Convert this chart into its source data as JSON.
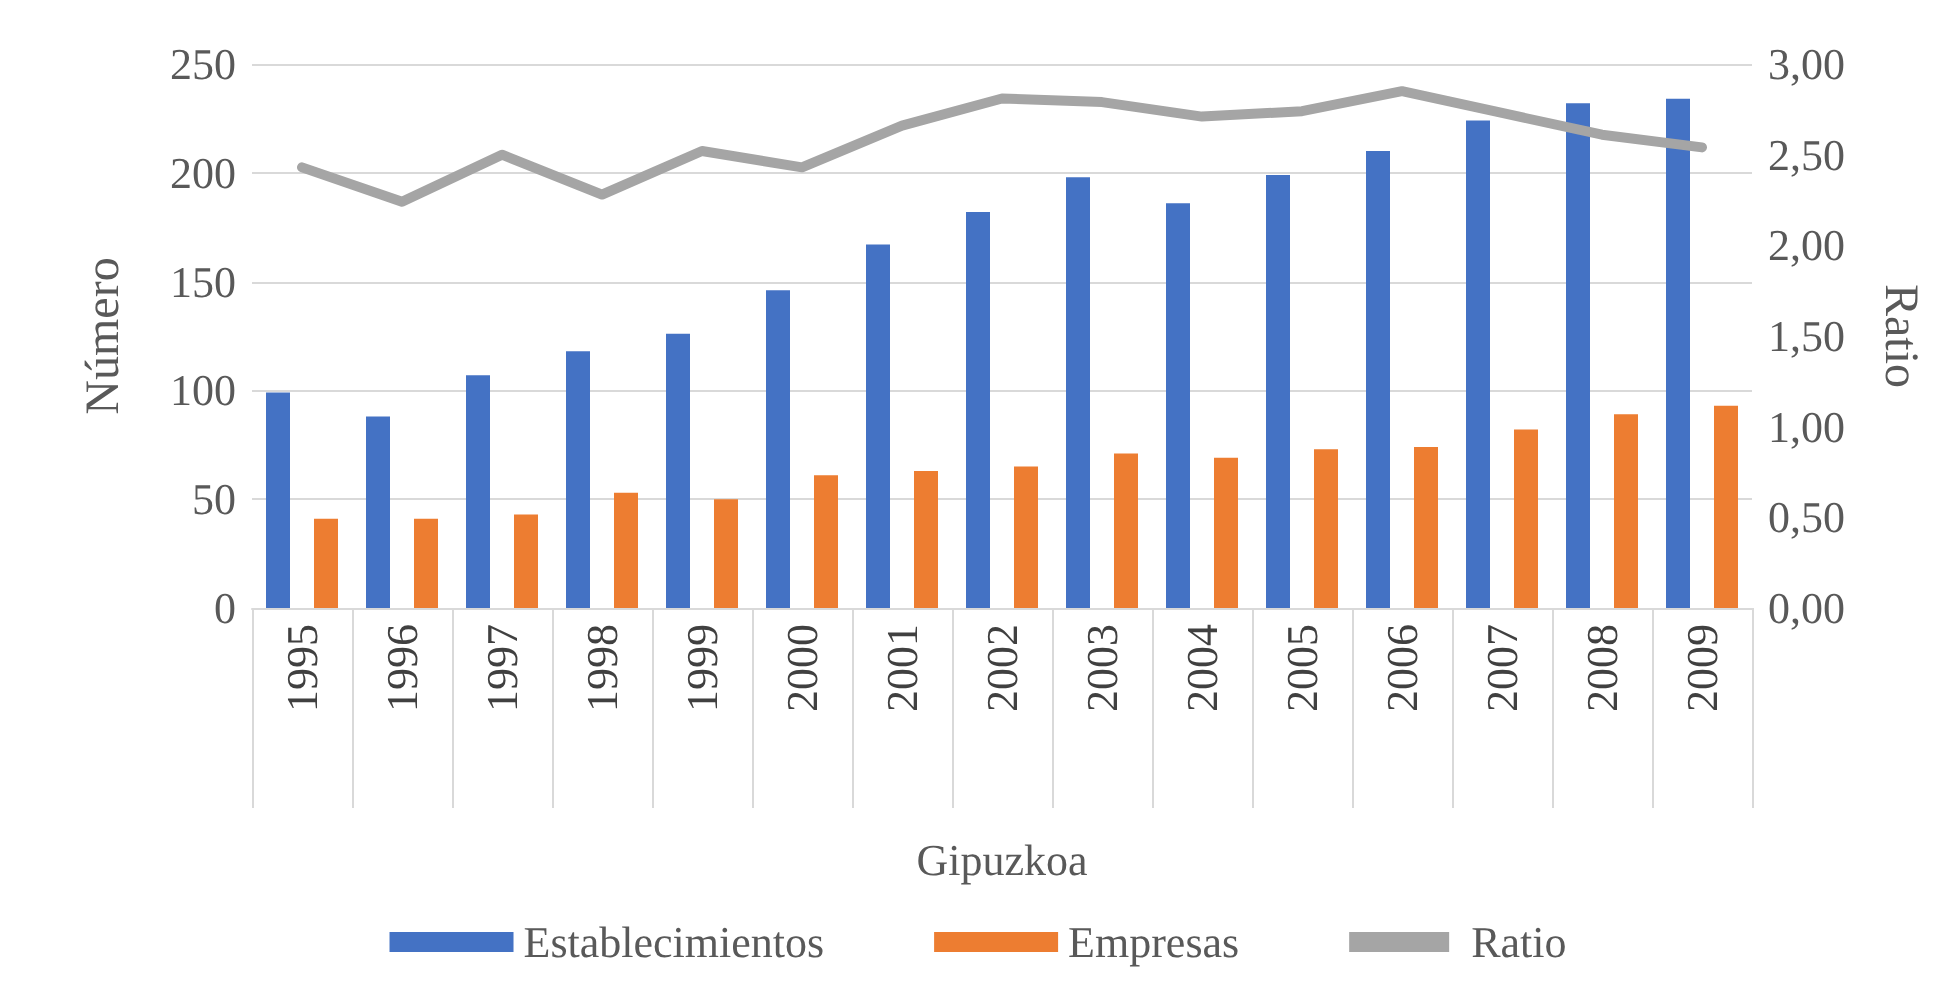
{
  "chart_data": {
    "type": "bar",
    "xlabel": "Gipuzkoa",
    "ylabel": "Número",
    "y2label": "Ratio",
    "categories": [
      "1995",
      "1996",
      "1997",
      "1998",
      "1999",
      "2000",
      "2001",
      "2002",
      "2003",
      "2004",
      "2005",
      "2006",
      "2007",
      "2008",
      "2009"
    ],
    "series": [
      {
        "name": "Establecimientos",
        "color": "#4472c4",
        "values": [
          99,
          88,
          107,
          118,
          126,
          146,
          167,
          182,
          198,
          186,
          199,
          210,
          224,
          232,
          234
        ]
      },
      {
        "name": "Empresas",
        "color": "#ed7d31",
        "values": [
          41,
          41,
          43,
          53,
          50,
          61,
          63,
          65,
          71,
          69,
          73,
          74,
          82,
          89,
          93
        ]
      },
      {
        "name": "Ratio",
        "type": "line",
        "axis": "y2",
        "color": "#a5a5a5",
        "values": [
          2.43,
          2.24,
          2.5,
          2.28,
          2.52,
          2.43,
          2.66,
          2.81,
          2.79,
          2.71,
          2.74,
          2.85,
          2.73,
          2.61,
          2.54
        ]
      }
    ],
    "ylim": [
      0,
      250
    ],
    "yticks": [
      0,
      50,
      100,
      150,
      200,
      250
    ],
    "y2lim": [
      0,
      3
    ],
    "y2ticks": [
      {
        "value": 0,
        "label": "0,00"
      },
      {
        "value": 0.5,
        "label": "0,50"
      },
      {
        "value": 1,
        "label": "1,00"
      },
      {
        "value": 1.5,
        "label": "1,50"
      },
      {
        "value": 2,
        "label": "2,00"
      },
      {
        "value": 2.5,
        "label": "2,50"
      },
      {
        "value": 3,
        "label": "3,00"
      }
    ],
    "grid": "y",
    "legend": "bottom",
    "marker": "none",
    "line_style": "solid"
  }
}
